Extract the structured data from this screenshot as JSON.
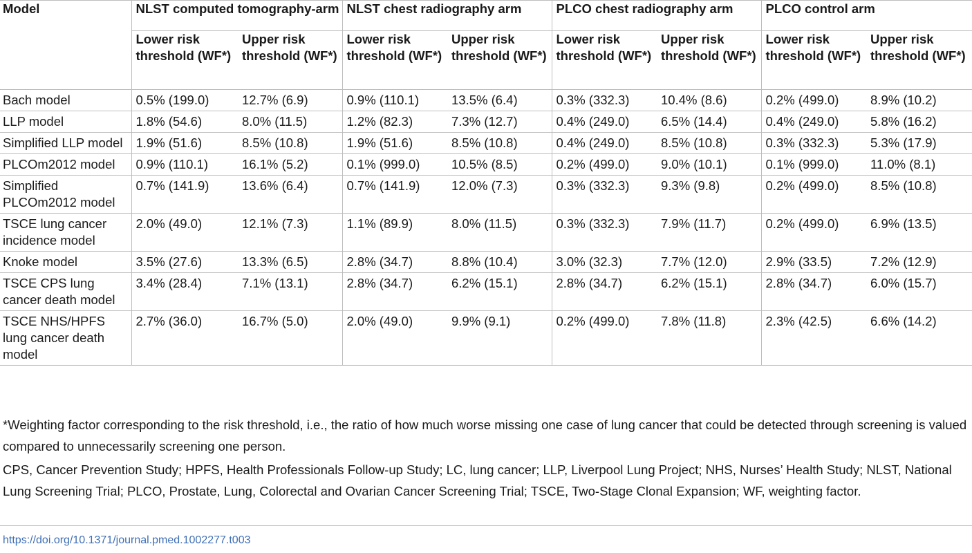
{
  "table": {
    "model_header": "Model",
    "groups": [
      "NLST computed tomography-arm",
      "NLST chest radiography arm",
      "PLCO chest radiography arm",
      "PLCO control arm"
    ],
    "subheaders": {
      "lower": "Lower risk threshold (WF*)",
      "upper": "Upper risk threshold (WF*)"
    },
    "rows": [
      {
        "model": "Bach model",
        "values": [
          "0.5% (199.0)",
          "12.7% (6.9)",
          "0.9% (110.1)",
          "13.5% (6.4)",
          "0.3% (332.3)",
          "10.4% (8.6)",
          "0.2% (499.0)",
          "8.9% (10.2)"
        ]
      },
      {
        "model": "LLP model",
        "values": [
          "1.8% (54.6)",
          "8.0% (11.5)",
          "1.2% (82.3)",
          "7.3% (12.7)",
          "0.4% (249.0)",
          "6.5% (14.4)",
          "0.4% (249.0)",
          "5.8% (16.2)"
        ]
      },
      {
        "model": "Simplified LLP model",
        "values": [
          "1.9% (51.6)",
          "8.5% (10.8)",
          "1.9% (51.6)",
          "8.5% (10.8)",
          "0.4% (249.0)",
          "8.5% (10.8)",
          "0.3% (332.3)",
          "5.3% (17.9)"
        ]
      },
      {
        "model": "PLCOm2012 model",
        "values": [
          "0.9% (110.1)",
          "16.1% (5.2)",
          "0.1% (999.0)",
          "10.5% (8.5)",
          "0.2% (499.0)",
          "9.0% (10.1)",
          "0.1% (999.0)",
          "11.0% (8.1)"
        ]
      },
      {
        "model": "Simplified PLCOm2012 model",
        "values": [
          "0.7% (141.9)",
          "13.6% (6.4)",
          "0.7% (141.9)",
          "12.0% (7.3)",
          "0.3% (332.3)",
          "9.3% (9.8)",
          "0.2% (499.0)",
          "8.5% (10.8)"
        ]
      },
      {
        "model": "TSCE lung cancer incidence model",
        "values": [
          "2.0% (49.0)",
          "12.1% (7.3)",
          "1.1% (89.9)",
          "8.0% (11.5)",
          "0.3% (332.3)",
          "7.9% (11.7)",
          "0.2% (499.0)",
          "6.9% (13.5)"
        ]
      },
      {
        "model": "Knoke model",
        "values": [
          "3.5% (27.6)",
          "13.3% (6.5)",
          "2.8% (34.7)",
          "8.8% (10.4)",
          "3.0% (32.3)",
          "7.7% (12.0)",
          "2.9% (33.5)",
          "7.2% (12.9)"
        ]
      },
      {
        "model": "TSCE CPS lung cancer death model",
        "values": [
          "3.4% (28.4)",
          "7.1% (13.1)",
          "2.8% (34.7)",
          "6.2% (15.1)",
          "2.8% (34.7)",
          "6.2% (15.1)",
          "2.8% (34.7)",
          "6.0% (15.7)"
        ]
      },
      {
        "model": "TSCE NHS/HPFS lung cancer death model",
        "values": [
          "2.7% (36.0)",
          "16.7% (5.0)",
          "2.0% (49.0)",
          "9.9% (9.1)",
          "0.2% (499.0)",
          "7.8% (11.8)",
          "2.3% (42.5)",
          "6.6% (14.2)"
        ]
      }
    ]
  },
  "footnotes": [
    "*Weighting factor corresponding to the risk threshold, i.e., the ratio of how much worse missing one case of lung cancer that could be detected through screening is valued compared to unnecessarily screening one person.",
    "CPS, Cancer Prevention Study; HPFS, Health Professionals Follow-up Study; LC, lung cancer; LLP, Liverpool Lung Project; NHS, Nurses’ Health Study; NLST, National Lung Screening Trial; PLCO, Prostate, Lung, Colorectal and Ovarian Cancer Screening Trial; TSCE, Two-Stage Clonal Expansion; WF, weighting factor."
  ],
  "doi": "https://doi.org/10.1371/journal.pmed.1002277.t003"
}
